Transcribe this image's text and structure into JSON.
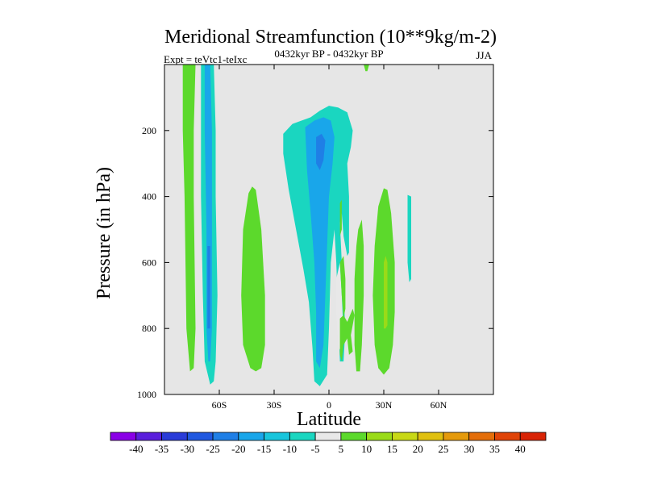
{
  "chart_data": {
    "type": "heatmap",
    "title": "Meridional Streamfunction (10**9kg/m-2)",
    "subtitle_left": "Expt = teVtc1-teIxc",
    "subtitle_center": "0432kyr BP - 0432kyr BP",
    "subtitle_right": "JJA",
    "xlabel": "Latitude",
    "ylabel": "Pressure (in hPa)",
    "xlim": [
      -90,
      90
    ],
    "ylim": [
      1000,
      0
    ],
    "x_ticks": [
      {
        "value": -60,
        "label": "60S"
      },
      {
        "value": -30,
        "label": "30S"
      },
      {
        "value": 0,
        "label": "0"
      },
      {
        "value": 30,
        "label": "30N"
      },
      {
        "value": 60,
        "label": "60N"
      }
    ],
    "y_ticks": [
      {
        "value": 200,
        "label": "200"
      },
      {
        "value": 400,
        "label": "400"
      },
      {
        "value": 600,
        "label": "600"
      },
      {
        "value": 800,
        "label": "800"
      },
      {
        "value": 1000,
        "label": "1000"
      }
    ],
    "background_color": "#e6e6e6",
    "colorbar": {
      "levels": [
        "-40",
        "-35",
        "-30",
        "-25",
        "-20",
        "-15",
        "-10",
        "-5",
        "5",
        "10",
        "15",
        "20",
        "25",
        "30",
        "35",
        "40"
      ],
      "colors": [
        "#8a00e6",
        "#5a1fdc",
        "#2a3cd8",
        "#2058e0",
        "#1f7fe6",
        "#19a6ea",
        "#18c5dc",
        "#1ad6c0",
        "#e8e8e8",
        "#5cd92c",
        "#9adb18",
        "#c8d816",
        "#e0c010",
        "#e59a0c",
        "#e46e0a",
        "#e04408",
        "#d82406"
      ]
    },
    "regions": [
      {
        "name": "green-band-far-south",
        "value": 7,
        "color": "#5cd92c",
        "points": [
          [
            -80,
            0
          ],
          [
            -73,
            0
          ],
          [
            -74,
            200
          ],
          [
            -74,
            400
          ],
          [
            -73,
            800
          ],
          [
            -74,
            920
          ],
          [
            -76,
            930
          ],
          [
            -78,
            800
          ],
          [
            -79,
            400
          ],
          [
            -80,
            200
          ]
        ]
      },
      {
        "name": "cyan-cell-south",
        "value": -8,
        "color": "#1ad6c0",
        "points": [
          [
            -70,
            0
          ],
          [
            -63,
            0
          ],
          [
            -62,
            200
          ],
          [
            -62,
            400
          ],
          [
            -61,
            700
          ],
          [
            -62,
            900
          ],
          [
            -63,
            960
          ],
          [
            -65,
            970
          ],
          [
            -68,
            900
          ],
          [
            -69,
            700
          ],
          [
            -70,
            400
          ],
          [
            -70,
            200
          ]
        ]
      },
      {
        "name": "blue-core-south",
        "value": -14,
        "color": "#19a6ea",
        "points": [
          [
            -68,
            0
          ],
          [
            -65,
            0
          ],
          [
            -64,
            200
          ],
          [
            -64,
            500
          ],
          [
            -64,
            800
          ],
          [
            -65,
            900
          ],
          [
            -66,
            900
          ],
          [
            -67,
            800
          ],
          [
            -67,
            500
          ],
          [
            -68,
            200
          ]
        ]
      },
      {
        "name": "deep-core-south",
        "value": -20,
        "color": "#1f7fe6",
        "points": [
          [
            -66.5,
            550
          ],
          [
            -65,
            550
          ],
          [
            -65,
            800
          ],
          [
            -66.5,
            800
          ]
        ]
      },
      {
        "name": "green-blob-midlat",
        "value": 7,
        "color": "#5cd92c",
        "points": [
          [
            -42,
            370
          ],
          [
            -40,
            380
          ],
          [
            -37,
            500
          ],
          [
            -35,
            700
          ],
          [
            -35,
            850
          ],
          [
            -37,
            920
          ],
          [
            -40,
            930
          ],
          [
            -43,
            920
          ],
          [
            -47,
            850
          ],
          [
            -48,
            700
          ],
          [
            -47,
            500
          ],
          [
            -44,
            390
          ]
        ]
      },
      {
        "name": "green-blob-upper-north",
        "value": 6,
        "color": "#5cd92c",
        "points": [
          [
            19,
            0
          ],
          [
            22,
            0
          ],
          [
            21,
            20
          ],
          [
            20,
            20
          ]
        ]
      },
      {
        "name": "cyan-large-cell",
        "value": -7,
        "color": "#1ad6c0",
        "points": [
          [
            -25,
            210
          ],
          [
            -20,
            180
          ],
          [
            -15,
            170
          ],
          [
            -10,
            160
          ],
          [
            -5,
            140
          ],
          [
            0,
            125
          ],
          [
            5,
            130
          ],
          [
            10,
            145
          ],
          [
            13,
            200
          ],
          [
            12,
            250
          ],
          [
            10,
            300
          ],
          [
            11,
            400
          ],
          [
            11,
            500
          ],
          [
            11,
            570
          ],
          [
            10,
            580
          ],
          [
            8,
            520
          ],
          [
            7,
            450
          ],
          [
            6,
            480
          ],
          [
            7,
            600
          ],
          [
            8,
            700
          ],
          [
            9,
            800
          ],
          [
            8,
            900
          ],
          [
            6,
            900
          ],
          [
            5,
            750
          ],
          [
            4,
            600
          ],
          [
            3,
            500
          ],
          [
            1,
            600
          ],
          [
            0,
            800
          ],
          [
            -1,
            940
          ],
          [
            -5,
            975
          ],
          [
            -8,
            960
          ],
          [
            -9,
            860
          ],
          [
            -11,
            720
          ],
          [
            -14,
            620
          ],
          [
            -18,
            500
          ],
          [
            -22,
            380
          ],
          [
            -25,
            270
          ]
        ]
      },
      {
        "name": "white-gap-right",
        "value": 0,
        "color": "#e8e8e8",
        "points": [
          [
            4,
            650
          ],
          [
            6,
            600
          ],
          [
            7,
            700
          ],
          [
            8,
            820
          ],
          [
            7,
            880
          ],
          [
            5,
            850
          ],
          [
            4,
            750
          ]
        ]
      },
      {
        "name": "green-sliver-equator",
        "value": 6,
        "color": "#5cd92c",
        "points": [
          [
            6,
            600
          ],
          [
            8,
            580
          ],
          [
            9,
            650
          ],
          [
            9,
            740
          ],
          [
            8,
            770
          ],
          [
            7,
            700
          ]
        ]
      },
      {
        "name": "green-v-shape",
        "value": 7,
        "color": "#5cd92c",
        "points": [
          [
            6,
            770
          ],
          [
            8,
            760
          ],
          [
            10,
            780
          ],
          [
            13,
            740
          ],
          [
            14,
            760
          ],
          [
            12,
            820
          ],
          [
            13,
            870
          ],
          [
            11,
            880
          ],
          [
            10,
            830
          ],
          [
            8,
            850
          ],
          [
            7,
            900
          ],
          [
            6,
            880
          ]
        ]
      },
      {
        "name": "green-sliver-north-a",
        "value": 6,
        "color": "#5cd92c",
        "points": [
          [
            6,
            420
          ],
          [
            7,
            410
          ],
          [
            7,
            500
          ],
          [
            6,
            520
          ]
        ]
      },
      {
        "name": "blue-core-equator",
        "value": -14,
        "color": "#19a6ea",
        "points": [
          [
            -13,
            190
          ],
          [
            -8,
            170
          ],
          [
            -3,
            160
          ],
          [
            1,
            170
          ],
          [
            3,
            220
          ],
          [
            2,
            300
          ],
          [
            0,
            400
          ],
          [
            -1,
            550
          ],
          [
            -2,
            700
          ],
          [
            -3,
            850
          ],
          [
            -5,
            920
          ],
          [
            -7,
            900
          ],
          [
            -7,
            750
          ],
          [
            -8,
            600
          ],
          [
            -10,
            450
          ],
          [
            -12,
            320
          ]
        ]
      },
      {
        "name": "deep-core-equator",
        "value": -20,
        "color": "#1f7fe6",
        "points": [
          [
            -7,
            220
          ],
          [
            -4,
            210
          ],
          [
            -2,
            230
          ],
          [
            -3,
            290
          ],
          [
            -5,
            320
          ],
          [
            -7,
            300
          ]
        ]
      },
      {
        "name": "green-band-20n",
        "value": 6,
        "color": "#5cd92c",
        "points": [
          [
            16,
            500
          ],
          [
            18,
            470
          ],
          [
            19,
            550
          ],
          [
            19,
            700
          ],
          [
            18,
            850
          ],
          [
            17,
            930
          ],
          [
            15,
            930
          ],
          [
            14,
            850
          ],
          [
            14,
            650
          ],
          [
            15,
            550
          ]
        ]
      },
      {
        "name": "green-blob-30n",
        "value": 7,
        "color": "#5cd92c",
        "points": [
          [
            30,
            375
          ],
          [
            32,
            380
          ],
          [
            34,
            450
          ],
          [
            36,
            600
          ],
          [
            36,
            750
          ],
          [
            35,
            850
          ],
          [
            33,
            920
          ],
          [
            30,
            940
          ],
          [
            27,
            920
          ],
          [
            25,
            850
          ],
          [
            24,
            700
          ],
          [
            25,
            550
          ],
          [
            27,
            430
          ]
        ]
      },
      {
        "name": "yellow-core-30n",
        "value": 11,
        "color": "#9adb18",
        "points": [
          [
            31,
            580
          ],
          [
            32,
            600
          ],
          [
            32,
            700
          ],
          [
            32,
            790
          ],
          [
            31,
            800
          ],
          [
            30,
            800
          ],
          [
            30,
            700
          ],
          [
            30,
            600
          ]
        ]
      },
      {
        "name": "cyan-sliver-40n",
        "value": -7,
        "color": "#1ad6c0",
        "points": [
          [
            43,
            395
          ],
          [
            45,
            400
          ],
          [
            45,
            500
          ],
          [
            45,
            650
          ],
          [
            44,
            660
          ],
          [
            43,
            600
          ],
          [
            43,
            500
          ]
        ]
      }
    ]
  }
}
